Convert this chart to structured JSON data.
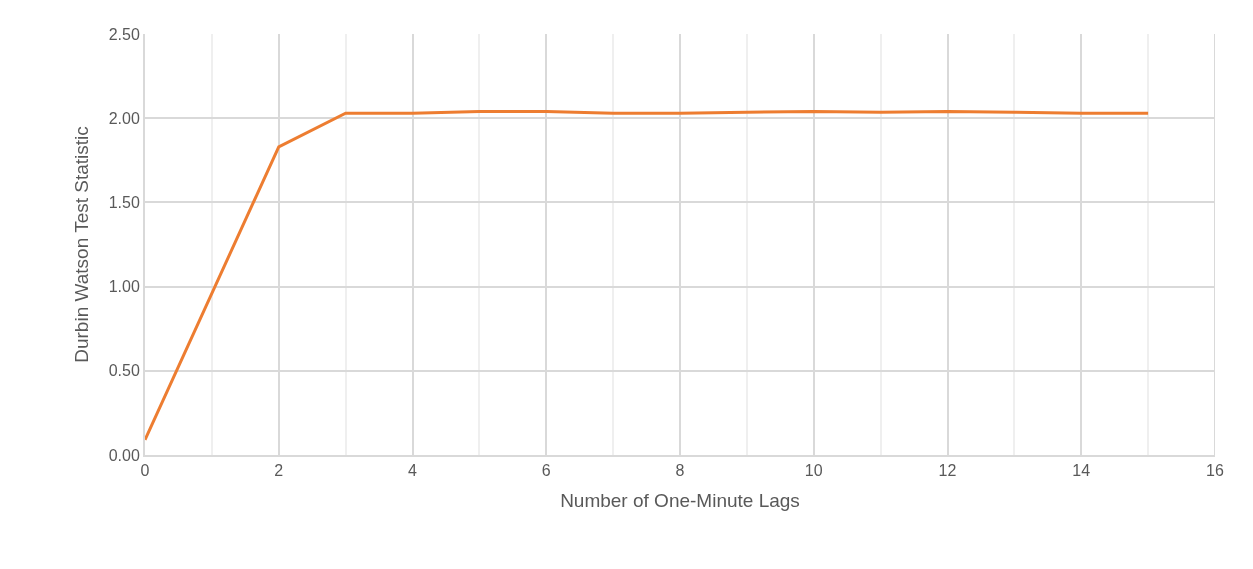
{
  "chart_data": {
    "type": "line",
    "xlabel": "Number of One-Minute Lags",
    "ylabel": "Durbin Watson Test Statistic",
    "x": [
      0,
      2,
      3,
      4,
      5,
      6,
      7,
      8,
      9,
      10,
      11,
      12,
      13,
      14,
      15
    ],
    "series": [
      {
        "color": "#ed7d31",
        "values": [
          0.09,
          1.83,
          2.03,
          2.03,
          2.04,
          2.04,
          2.03,
          2.03,
          2.035,
          2.04,
          2.035,
          2.04,
          2.035,
          2.03,
          2.03
        ]
      }
    ],
    "xlim": [
      0,
      16
    ],
    "xticks": [
      0,
      2,
      4,
      6,
      8,
      10,
      12,
      14,
      16
    ],
    "ylim": [
      0,
      2.5
    ],
    "yticks": [
      {
        "value": 0,
        "label": "0.00"
      },
      {
        "value": 0.5,
        "label": "0.50"
      },
      {
        "value": 1,
        "label": "1.00"
      },
      {
        "value": 1.5,
        "label": "1.50"
      },
      {
        "value": 2,
        "label": "2.00"
      },
      {
        "value": 2.5,
        "label": "2.50"
      }
    ],
    "grid": true,
    "legend": false,
    "marker": "none",
    "line_style": "solid"
  }
}
